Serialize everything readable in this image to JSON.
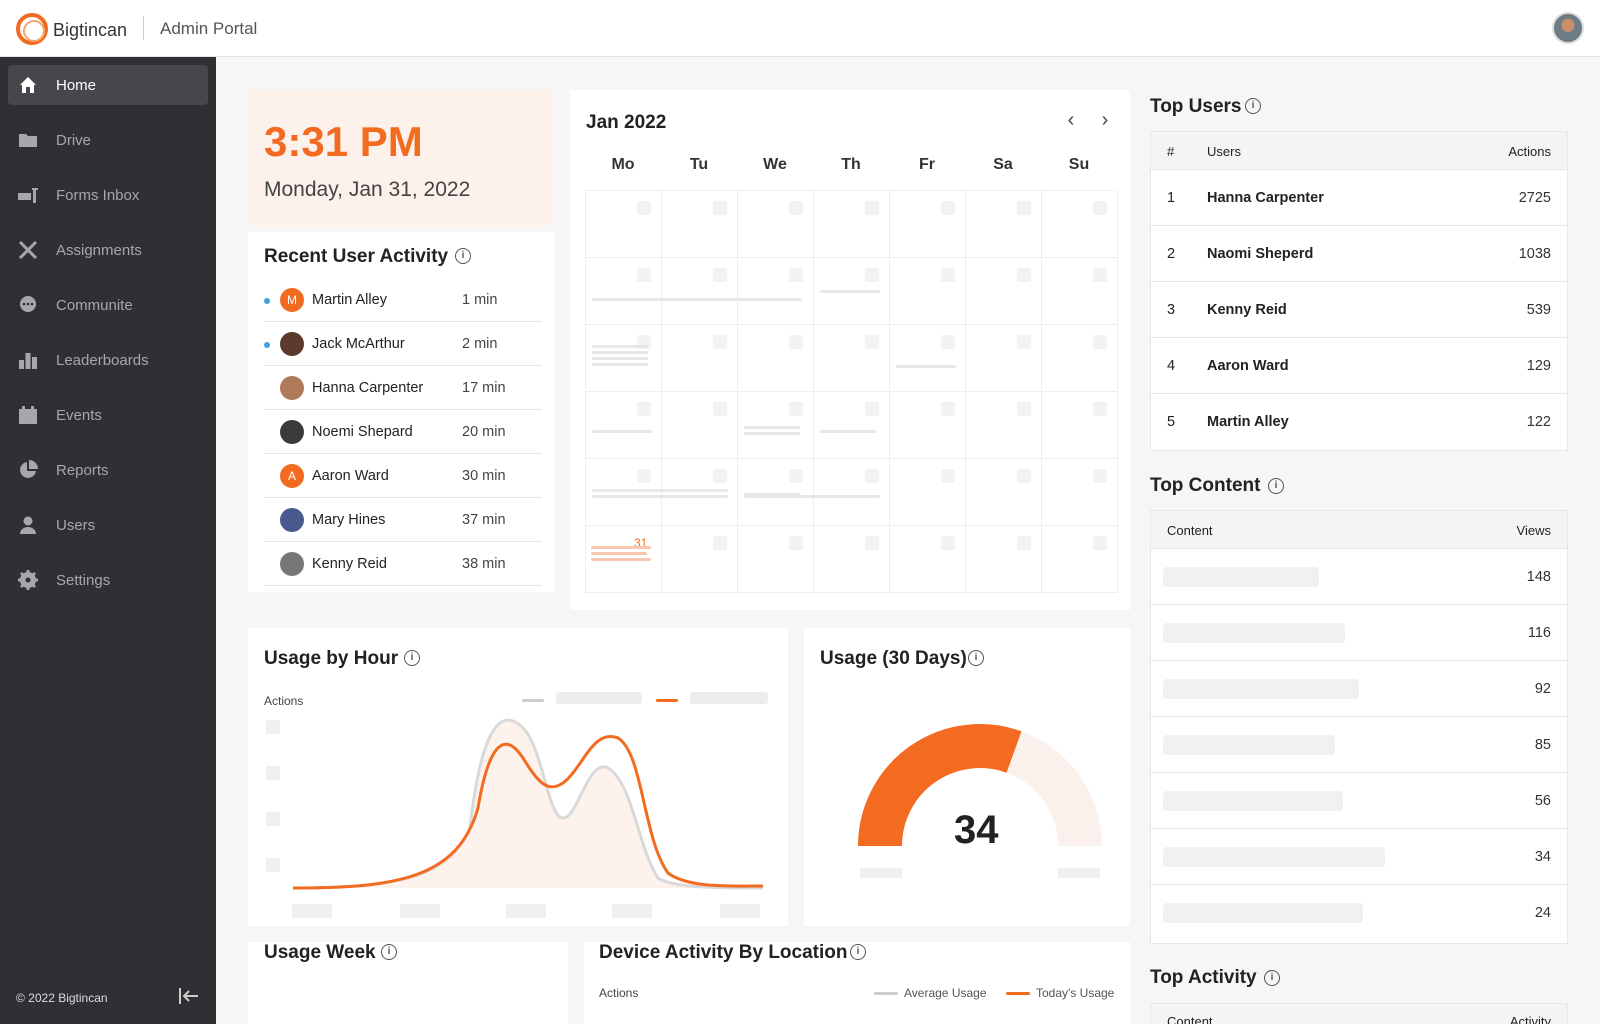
{
  "header": {
    "brand": "Bigtincan",
    "portal": "Admin Portal"
  },
  "sidebar": {
    "items": [
      {
        "label": "Home",
        "icon": "home-icon",
        "active": true
      },
      {
        "label": "Drive",
        "icon": "folder-icon"
      },
      {
        "label": "Forms Inbox",
        "icon": "forms-inbox-icon"
      },
      {
        "label": "Assignments",
        "icon": "assignments-icon"
      },
      {
        "label": "Communite",
        "icon": "chat-icon"
      },
      {
        "label": "Leaderboards",
        "icon": "leaderboard-icon"
      },
      {
        "label": "Events",
        "icon": "calendar-icon"
      },
      {
        "label": "Reports",
        "icon": "pie-chart-icon"
      },
      {
        "label": "Users",
        "icon": "user-icon"
      },
      {
        "label": "Settings",
        "icon": "gear-icon"
      }
    ],
    "footer": "© 2022 Bigtincan"
  },
  "clock": {
    "time": "3:31 PM",
    "date": "Monday, Jan 31, 2022"
  },
  "recent_activity": {
    "title": "Recent User Activity",
    "rows": [
      {
        "name": "Martin Alley",
        "time": "1 min",
        "initial": "M",
        "online": true
      },
      {
        "name": "Jack McArthur",
        "time": "2 min",
        "initial": "",
        "online": true
      },
      {
        "name": "Hanna Carpenter",
        "time": "17 min",
        "initial": "",
        "online": false
      },
      {
        "name": "Noemi Shepard",
        "time": "20 min",
        "initial": "",
        "online": false
      },
      {
        "name": "Aaron Ward",
        "time": "30 min",
        "initial": "A",
        "online": false
      },
      {
        "name": "Mary Hines",
        "time": "37 min",
        "initial": "",
        "online": false
      },
      {
        "name": "Kenny Reid",
        "time": "38 min",
        "initial": "",
        "online": false
      }
    ]
  },
  "calendar": {
    "title": "Jan 2022",
    "days": [
      "Mo",
      "Tu",
      "We",
      "Th",
      "Fr",
      "Sa",
      "Su"
    ],
    "today": "31"
  },
  "usage_hour": {
    "title": "Usage by Hour",
    "ylabel": "Actions"
  },
  "usage_30": {
    "title": "Usage (30 Days)",
    "value": "34"
  },
  "usage_week": {
    "title": "Usage Week"
  },
  "device": {
    "title": "Device Activity By Location",
    "ylabel": "Actions",
    "legend_avg": "Average Usage",
    "legend_today": "Today's Usage"
  },
  "top_users": {
    "title": "Top Users",
    "headers": [
      "#",
      "Users",
      "Actions"
    ],
    "rows": [
      {
        "rank": "1",
        "name": "Hanna Carpenter",
        "actions": "2725"
      },
      {
        "rank": "2",
        "name": "Naomi Sheperd",
        "actions": "1038"
      },
      {
        "rank": "3",
        "name": "Kenny Reid",
        "actions": "539"
      },
      {
        "rank": "4",
        "name": "Aaron Ward",
        "actions": "129"
      },
      {
        "rank": "5",
        "name": "Martin Alley",
        "actions": "122"
      }
    ]
  },
  "top_content": {
    "title": "Top Content",
    "headers": [
      "Content",
      "Views"
    ],
    "views": [
      "148",
      "116",
      "92",
      "85",
      "56",
      "34",
      "24"
    ]
  },
  "top_activity": {
    "title": "Top Activity",
    "headers": [
      "Content",
      "Activity"
    ]
  },
  "colors": {
    "accent": "#f26b21",
    "sidebar": "#2f3033"
  }
}
